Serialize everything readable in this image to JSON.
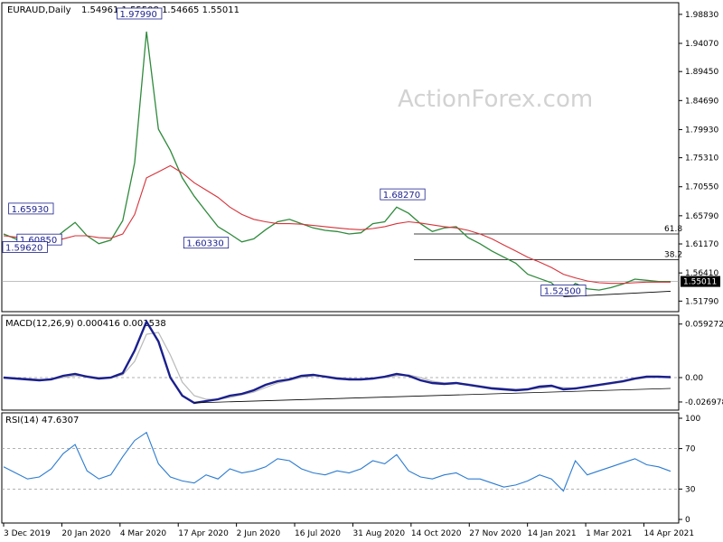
{
  "watermark": "ActionForex.com",
  "colors": {
    "price": "#2f8a3c",
    "ma": "#d6333a",
    "macd": "#1a1f8c",
    "signal": "#b9b9b9",
    "rsi": "#2b7bd1",
    "trend": "#000000",
    "fib": "#000000",
    "grid_hline": "#9a9a9a",
    "watermark": "#d2d2d2"
  },
  "chart_data": {
    "type": "line",
    "main": {
      "title": "EURAUD,Daily",
      "ohlc_text": "1.54961 1.55508 1.54665 1.55011",
      "y_ticks": [
        "1.98830",
        "1.94070",
        "1.89450",
        "1.84690",
        "1.79930",
        "1.75310",
        "1.70550",
        "1.65790",
        "1.61170",
        "1.56410",
        "1.51790"
      ],
      "ylim": [
        1.508,
        2.0
      ],
      "current_price": "1.55011",
      "labels": [
        {
          "text": "1.97990",
          "value": 1.9799,
          "date_index": 11.4
        },
        {
          "text": "1.65930",
          "value": 1.6593,
          "date_index": 2.3
        },
        {
          "text": "1.60850",
          "value": 1.6085,
          "date_index": 3.0
        },
        {
          "text": "1.59620",
          "value": 1.5962,
          "date_index": 0.0
        },
        {
          "text": "1.60330",
          "value": 1.6033,
          "date_index": 17.0
        },
        {
          "text": "1.68270",
          "value": 1.6827,
          "date_index": 33.5
        },
        {
          "text": "1.52500",
          "value": 1.525,
          "date_index": 47.0
        }
      ],
      "fib_levels": [
        {
          "label": "61.8",
          "value": 1.628
        },
        {
          "label": "38.2",
          "value": 1.586
        }
      ],
      "price_series": [
        1.628,
        1.62,
        1.61,
        1.602,
        1.615,
        1.632,
        1.647,
        1.625,
        1.612,
        1.618,
        1.65,
        1.745,
        1.96,
        1.8,
        1.765,
        1.72,
        1.69,
        1.665,
        1.64,
        1.628,
        1.615,
        1.62,
        1.635,
        1.648,
        1.652,
        1.645,
        1.638,
        1.634,
        1.632,
        1.628,
        1.63,
        1.645,
        1.648,
        1.672,
        1.662,
        1.645,
        1.632,
        1.638,
        1.64,
        1.622,
        1.612,
        1.6,
        1.59,
        1.58,
        1.562,
        1.555,
        1.548,
        1.528,
        1.547,
        1.538,
        1.536,
        1.54,
        1.546,
        1.554,
        1.552,
        1.55,
        1.55011
      ],
      "ma_series": [
        1.625,
        1.623,
        1.62,
        1.617,
        1.617,
        1.62,
        1.625,
        1.625,
        1.622,
        1.621,
        1.628,
        1.66,
        1.72,
        1.73,
        1.74,
        1.728,
        1.712,
        1.7,
        1.688,
        1.672,
        1.66,
        1.652,
        1.648,
        1.645,
        1.645,
        1.644,
        1.642,
        1.64,
        1.638,
        1.636,
        1.635,
        1.637,
        1.64,
        1.645,
        1.648,
        1.646,
        1.643,
        1.64,
        1.638,
        1.634,
        1.628,
        1.62,
        1.61,
        1.6,
        1.59,
        1.582,
        1.573,
        1.562,
        1.556,
        1.551,
        1.548,
        1.547,
        1.547,
        1.548,
        1.549,
        1.549,
        1.549
      ]
    },
    "macd": {
      "title": "MACD(12,26,9) 0.000416 0.001538",
      "y_ticks": [
        "0.059272",
        "0.00",
        "-0.026978"
      ],
      "ylim": [
        -0.034,
        0.066
      ],
      "macd_series": [
        0.0,
        -0.001,
        -0.002,
        -0.003,
        -0.002,
        0.002,
        0.004,
        0.001,
        -0.001,
        0.0,
        0.005,
        0.03,
        0.062,
        0.04,
        0.0,
        -0.02,
        -0.028,
        -0.026,
        -0.024,
        -0.02,
        -0.018,
        -0.014,
        -0.008,
        -0.004,
        -0.002,
        0.002,
        0.003,
        0.001,
        -0.001,
        -0.002,
        -0.002,
        -0.001,
        0.001,
        0.004,
        0.002,
        -0.003,
        -0.006,
        -0.007,
        -0.006,
        -0.008,
        -0.01,
        -0.012,
        -0.013,
        -0.014,
        -0.013,
        -0.01,
        -0.009,
        -0.013,
        -0.012,
        -0.01,
        -0.008,
        -0.006,
        -0.004,
        -0.001,
        0.001,
        0.001,
        0.000416
      ],
      "signal_series": [
        0.0,
        -0.001,
        -0.001,
        -0.002,
        -0.002,
        0.0,
        0.002,
        0.002,
        0.0,
        0.0,
        0.003,
        0.018,
        0.048,
        0.05,
        0.025,
        -0.005,
        -0.02,
        -0.024,
        -0.024,
        -0.022,
        -0.019,
        -0.016,
        -0.011,
        -0.006,
        -0.003,
        0.0,
        0.002,
        0.002,
        0.0,
        -0.001,
        -0.002,
        -0.001,
        0.0,
        0.002,
        0.003,
        0.0,
        -0.004,
        -0.006,
        -0.006,
        -0.007,
        -0.009,
        -0.011,
        -0.012,
        -0.013,
        -0.013,
        -0.012,
        -0.01,
        -0.011,
        -0.012,
        -0.011,
        -0.009,
        -0.007,
        -0.005,
        -0.002,
        0.0,
        0.001,
        0.001538
      ]
    },
    "rsi": {
      "title": "RSI(14) 47.6307",
      "y_ticks": [
        "100",
        "70",
        "30",
        "0"
      ],
      "ylim": [
        0,
        100
      ],
      "levels": [
        70,
        30
      ],
      "rsi_series": [
        52,
        46,
        40,
        42,
        50,
        65,
        74,
        48,
        40,
        44,
        62,
        78,
        86,
        55,
        42,
        38,
        36,
        44,
        40,
        50,
        46,
        48,
        52,
        60,
        58,
        50,
        46,
        44,
        48,
        46,
        50,
        58,
        55,
        64,
        48,
        42,
        40,
        44,
        46,
        40,
        40,
        36,
        32,
        34,
        38,
        44,
        40,
        28,
        58,
        44,
        48,
        52,
        56,
        60,
        54,
        52,
        47.6307
      ]
    },
    "x_tick_labels": [
      "3 Dec 2019",
      "20 Jan 2020",
      "4 Mar 2020",
      "17 Apr 2020",
      "2 Jun 2020",
      "16 Jul 2020",
      "31 Aug 2020",
      "14 Oct 2020",
      "27 Nov 2020",
      "14 Jan 2021",
      "1 Mar 2021",
      "14 Apr 2021"
    ]
  }
}
